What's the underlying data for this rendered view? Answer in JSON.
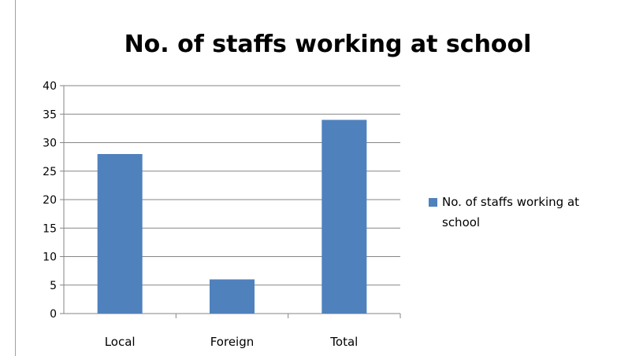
{
  "chart_data": {
    "type": "bar",
    "title": "No. of staffs working at school",
    "categories": [
      "Local",
      "Foreign",
      "Total"
    ],
    "series": [
      {
        "name": "No. of staffs working at school",
        "values": [
          28,
          6,
          34
        ],
        "color": "#4f81bd"
      }
    ],
    "y_ticks": [
      0,
      5,
      10,
      15,
      20,
      25,
      30,
      35,
      40
    ],
    "ylim": [
      0,
      40
    ],
    "grid": true,
    "legend": {
      "position": "right",
      "lines": [
        "No. of staffs working at",
        "school"
      ]
    }
  }
}
